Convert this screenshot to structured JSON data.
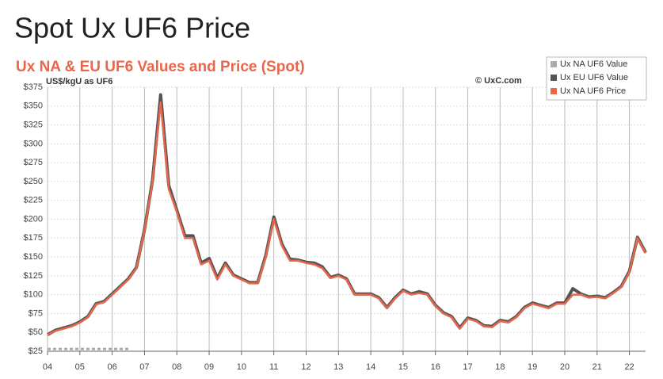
{
  "heading": "Spot Ux UF6 Price",
  "chart_data": {
    "type": "line",
    "title": "Ux NA & EU UF6 Values and Price (Spot)",
    "subtitle": "US$/kgU as UF6",
    "annotation": "© UxC.com",
    "x": [
      2004,
      2004.25,
      2004.5,
      2004.75,
      2005,
      2005.25,
      2005.5,
      2005.75,
      2006,
      2006.25,
      2006.5,
      2006.75,
      2007,
      2007.25,
      2007.5,
      2007.75,
      2008,
      2008.25,
      2008.5,
      2008.75,
      2009,
      2009.25,
      2009.5,
      2009.75,
      2010,
      2010.25,
      2010.5,
      2010.75,
      2011,
      2011.25,
      2011.5,
      2011.75,
      2012,
      2012.25,
      2012.5,
      2012.75,
      2013,
      2013.25,
      2013.5,
      2013.75,
      2014,
      2014.25,
      2014.5,
      2014.75,
      2015,
      2015.25,
      2015.5,
      2015.75,
      2016,
      2016.25,
      2016.5,
      2016.75,
      2017,
      2017.25,
      2017.5,
      2017.75,
      2018,
      2018.25,
      2018.5,
      2018.75,
      2019,
      2019.25,
      2019.5,
      2019.75,
      2020,
      2020.25,
      2020.5,
      2020.75,
      2021,
      2021.25,
      2021.5,
      2021.75,
      2022,
      2022.25,
      2022.5
    ],
    "series": [
      {
        "name": "Ux NA UF6 Value",
        "color": "#aaaaaa",
        "values": [
          28,
          28,
          28,
          28,
          28,
          28,
          28,
          28,
          28,
          28,
          28,
          null,
          null,
          null,
          null,
          null,
          null,
          null,
          null,
          null,
          null,
          null,
          null,
          null,
          null,
          null,
          null,
          null,
          null,
          null,
          null,
          null,
          null,
          null,
          null,
          null,
          null,
          null,
          null,
          null,
          null,
          null,
          null,
          null,
          null,
          null,
          null,
          null,
          null,
          null,
          null,
          null,
          null,
          null,
          null,
          null,
          null,
          null,
          null,
          null,
          null,
          null,
          null,
          null,
          null,
          null,
          null,
          null,
          null,
          null,
          null,
          null,
          null,
          null,
          null
        ]
      },
      {
        "name": "Ux EU UF6 Value",
        "color": "#555555",
        "values": [
          47,
          53,
          56,
          59,
          64,
          71,
          88,
          91,
          101,
          111,
          121,
          136,
          186,
          252,
          365,
          245,
          212,
          178,
          178,
          142,
          148,
          122,
          142,
          126,
          121,
          116,
          116,
          152,
          203,
          167,
          147,
          146,
          143,
          142,
          137,
          123,
          126,
          121,
          101,
          101,
          101,
          96,
          83,
          96,
          106,
          101,
          104,
          101,
          86,
          76,
          71,
          56,
          69,
          66,
          59,
          58,
          66,
          64,
          71,
          83,
          89,
          86,
          83,
          89,
          89,
          108,
          101,
          97,
          98,
          96,
          103,
          111,
          131,
          176,
          156
        ]
      },
      {
        "name": "Ux NA UF6 Price",
        "color": "#e8664a",
        "values": [
          47,
          52,
          55,
          58,
          63,
          70,
          87,
          90,
          100,
          110,
          120,
          135,
          185,
          250,
          355,
          240,
          210,
          175,
          175,
          140,
          145,
          120,
          140,
          125,
          120,
          115,
          115,
          150,
          200,
          165,
          145,
          145,
          142,
          140,
          135,
          122,
          125,
          120,
          100,
          100,
          100,
          95,
          82,
          95,
          105,
          100,
          102,
          100,
          85,
          75,
          70,
          55,
          68,
          65,
          58,
          57,
          65,
          63,
          70,
          82,
          88,
          85,
          82,
          88,
          88,
          100,
          100,
          96,
          97,
          95,
          102,
          110,
          130,
          175,
          155
        ]
      }
    ],
    "xlim": [
      2004,
      2022.5
    ],
    "xticks": [
      {
        "value": 2004,
        "label": "04"
      },
      {
        "value": 2005,
        "label": "05"
      },
      {
        "value": 2006,
        "label": "06"
      },
      {
        "value": 2007,
        "label": "07"
      },
      {
        "value": 2008,
        "label": "08"
      },
      {
        "value": 2009,
        "label": "09"
      },
      {
        "value": 2010,
        "label": "10"
      },
      {
        "value": 2011,
        "label": "11"
      },
      {
        "value": 2012,
        "label": "12"
      },
      {
        "value": 2013,
        "label": "13"
      },
      {
        "value": 2014,
        "label": "14"
      },
      {
        "value": 2015,
        "label": "15"
      },
      {
        "value": 2016,
        "label": "16"
      },
      {
        "value": 2017,
        "label": "17"
      },
      {
        "value": 2018,
        "label": "18"
      },
      {
        "value": 2019,
        "label": "19"
      },
      {
        "value": 2020,
        "label": "20"
      },
      {
        "value": 2021,
        "label": "21"
      },
      {
        "value": 2022,
        "label": "22"
      }
    ],
    "ylim": [
      25,
      375
    ],
    "yticks": [
      {
        "value": 25,
        "label": "$25"
      },
      {
        "value": 50,
        "label": "$50"
      },
      {
        "value": 75,
        "label": "$75"
      },
      {
        "value": 100,
        "label": "$100"
      },
      {
        "value": 125,
        "label": "$125"
      },
      {
        "value": 150,
        "label": "$150"
      },
      {
        "value": 175,
        "label": "$175"
      },
      {
        "value": 200,
        "label": "$200"
      },
      {
        "value": 225,
        "label": "$225"
      },
      {
        "value": 250,
        "label": "$250"
      },
      {
        "value": 275,
        "label": "$275"
      },
      {
        "value": 300,
        "label": "$300"
      },
      {
        "value": 325,
        "label": "$325"
      },
      {
        "value": 350,
        "label": "$350"
      },
      {
        "value": 375,
        "label": "$375"
      }
    ],
    "grid": true,
    "legend": "top-right"
  }
}
